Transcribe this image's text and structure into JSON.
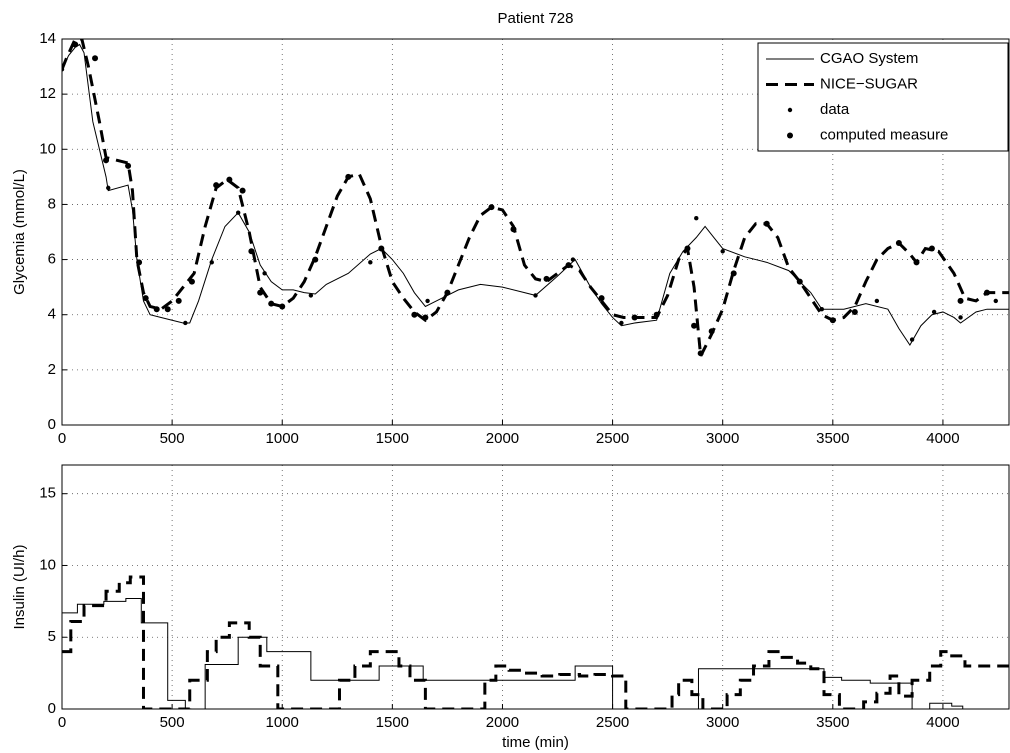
{
  "chart_data": [
    {
      "type": "line",
      "title": "Patient 728",
      "y_label": "Glycemia (mmol/L)",
      "xlim": [
        0,
        4300
      ],
      "xticks": [
        0,
        500,
        1000,
        1500,
        2000,
        2500,
        3000,
        3500,
        4000
      ],
      "ylim": [
        0,
        14
      ],
      "yticks": [
        0,
        2,
        4,
        6,
        8,
        10,
        12,
        14
      ],
      "grid": true,
      "legend": "northeast",
      "series": [
        {
          "name": "CGAO System",
          "color": "#000000",
          "style": "solid",
          "x": [
            0,
            30,
            60,
            80,
            100,
            140,
            200,
            210,
            300,
            320,
            340,
            370,
            400,
            450,
            500,
            550,
            580,
            620,
            680,
            740,
            800,
            850,
            900,
            950,
            1000,
            1050,
            1100,
            1150,
            1200,
            1300,
            1400,
            1450,
            1500,
            1550,
            1600,
            1650,
            1700,
            1800,
            1900,
            2000,
            2100,
            2150,
            2250,
            2330,
            2400,
            2450,
            2500,
            2540,
            2600,
            2700,
            2760,
            2820,
            2880,
            2920,
            2960,
            3000,
            3100,
            3200,
            3300,
            3400,
            3450,
            3550,
            3650,
            3750,
            3800,
            3850,
            3900,
            3950,
            4000,
            4050,
            4080,
            4150,
            4200,
            4300
          ],
          "values": [
            12.9,
            13.4,
            13.7,
            13.8,
            13.5,
            11,
            9,
            8.5,
            8.7,
            7.8,
            6,
            4.5,
            4,
            3.9,
            3.8,
            3.7,
            3.7,
            4.5,
            6,
            7.2,
            7.7,
            7,
            5.8,
            5.2,
            4.9,
            4.9,
            4.8,
            4.75,
            5.1,
            5.5,
            6.2,
            6.4,
            6,
            5.5,
            4.8,
            4.3,
            4.5,
            4.9,
            5.1,
            5,
            4.8,
            4.7,
            5.4,
            6,
            5,
            4.4,
            3.9,
            3.6,
            3.7,
            3.8,
            5.5,
            6.3,
            6.8,
            7.2,
            6.8,
            6.4,
            6.1,
            5.9,
            5.6,
            4.8,
            4.2,
            4.2,
            4.4,
            4.2,
            3.5,
            2.9,
            3.6,
            4,
            4.1,
            3.9,
            3.7,
            4.1,
            4.2,
            4.2
          ]
        },
        {
          "name": "NICE−SUGAR",
          "color": "#000000",
          "style": "dashed",
          "x": [
            0,
            20,
            60,
            90,
            120,
            170,
            200,
            250,
            300,
            320,
            340,
            370,
            400,
            450,
            500,
            550,
            600,
            650,
            700,
            750,
            800,
            850,
            900,
            950,
            1000,
            1050,
            1100,
            1150,
            1200,
            1250,
            1300,
            1350,
            1400,
            1450,
            1500,
            1550,
            1600,
            1650,
            1700,
            1750,
            1800,
            1850,
            1900,
            1950,
            2000,
            2050,
            2100,
            2150,
            2200,
            2250,
            2300,
            2350,
            2400,
            2450,
            2500,
            2550,
            2600,
            2700,
            2750,
            2800,
            2840,
            2870,
            2900,
            2950,
            3000,
            3050,
            3100,
            3150,
            3200,
            3250,
            3300,
            3350,
            3400,
            3450,
            3500,
            3550,
            3600,
            3650,
            3700,
            3750,
            3800,
            3850,
            3880,
            3920,
            3980,
            4050,
            4100,
            4150,
            4200,
            4300
          ],
          "values": [
            12.9,
            13.3,
            14,
            14,
            13,
            11,
            9.7,
            9.6,
            9.5,
            8.5,
            6,
            4.8,
            4.3,
            4.2,
            4.5,
            5,
            5.5,
            7.2,
            8.6,
            8.9,
            8.6,
            7,
            5,
            4.4,
            4.3,
            4.6,
            5.2,
            6.1,
            7.2,
            8.3,
            9,
            9.1,
            8.2,
            6.5,
            5.2,
            4.6,
            4.1,
            3.8,
            4.1,
            4.8,
            5.8,
            6.8,
            7.6,
            7.9,
            7.8,
            7.2,
            5.8,
            5.3,
            5.2,
            5.5,
            5.8,
            5.6,
            5,
            4.5,
            4,
            3.9,
            3.9,
            3.9,
            4.7,
            6,
            6.4,
            5,
            2.5,
            3.3,
            4.2,
            5.6,
            6.8,
            7.3,
            7.3,
            6.8,
            5.7,
            5.2,
            4.6,
            4,
            3.8,
            3.9,
            4.3,
            5.2,
            6,
            6.4,
            6.6,
            6.2,
            5.9,
            6.4,
            6.3,
            5.5,
            4.6,
            4.5,
            4.8,
            4.8
          ]
        },
        {
          "name": "data",
          "color": "#000000",
          "style": "small-dots",
          "x": [
            0,
            210,
            560,
            680,
            800,
            920,
            1130,
            1400,
            1660,
            2150,
            2320,
            2540,
            2880,
            3000,
            3450,
            3700,
            3860,
            3960,
            4080,
            4240
          ],
          "values": [
            12.9,
            8.6,
            3.7,
            5.9,
            7.7,
            5.5,
            4.7,
            5.9,
            4.5,
            4.7,
            6,
            3.7,
            7.5,
            6.3,
            4.2,
            4.5,
            3.1,
            4.1,
            3.9,
            4.5
          ]
        },
        {
          "name": "computed measure",
          "color": "#000000",
          "style": "large-dots",
          "x": [
            60,
            150,
            200,
            300,
            350,
            380,
            430,
            480,
            530,
            590,
            700,
            760,
            820,
            860,
            900,
            950,
            1000,
            1150,
            1300,
            1450,
            1600,
            1650,
            1750,
            1950,
            2050,
            2200,
            2300,
            2450,
            2600,
            2700,
            2840,
            2870,
            2900,
            2950,
            3050,
            3200,
            3350,
            3500,
            3600,
            3800,
            3880,
            3950,
            4080,
            4200
          ],
          "values": [
            13.8,
            13.3,
            9.6,
            9.4,
            5.9,
            4.6,
            4.2,
            4.2,
            4.5,
            5.2,
            8.7,
            8.9,
            8.5,
            6.3,
            4.8,
            4.4,
            4.3,
            6,
            9,
            6.4,
            4,
            3.9,
            4.8,
            7.9,
            7.1,
            5.3,
            5.8,
            4.6,
            3.9,
            4,
            6.4,
            3.6,
            2.6,
            3.4,
            5.5,
            7.3,
            5.2,
            3.8,
            4.1,
            6.6,
            5.9,
            6.4,
            4.5,
            4.8
          ]
        }
      ]
    },
    {
      "type": "step",
      "x_label": "time (min)",
      "y_label": "Insulin (UI/h)",
      "xlim": [
        0,
        4300
      ],
      "xticks": [
        0,
        500,
        1000,
        1500,
        2000,
        2500,
        3000,
        3500,
        4000
      ],
      "ylim": [
        0,
        17
      ],
      "yticks": [
        0,
        5,
        10,
        15
      ],
      "grid": true,
      "series": [
        {
          "name": "CGAO System",
          "color": "#000000",
          "style": "solid",
          "x": [
            0,
            70,
            190,
            290,
            360,
            480,
            560,
            650,
            800,
            930,
            1130,
            1440,
            1640,
            1920,
            2330,
            2500,
            2890,
            3460,
            3540,
            3670,
            3860,
            3940,
            4040,
            4090
          ],
          "values": [
            6.7,
            7.3,
            7.5,
            7.7,
            6,
            0.6,
            0,
            3.1,
            5,
            4,
            2,
            3,
            2,
            2,
            3,
            0,
            2.8,
            2.2,
            2,
            1.8,
            0,
            0.4,
            0.2,
            0
          ]
        },
        {
          "name": "NICE−SUGAR",
          "color": "#000000",
          "style": "dashed",
          "x": [
            0,
            40,
            100,
            200,
            260,
            310,
            370,
            540,
            580,
            660,
            700,
            760,
            850,
            900,
            980,
            1260,
            1330,
            1400,
            1530,
            1580,
            1650,
            1920,
            1970,
            2030,
            2100,
            2180,
            2260,
            2350,
            2420,
            2500,
            2560,
            2770,
            2800,
            2860,
            2910,
            3020,
            3080,
            3140,
            3210,
            3270,
            3340,
            3400,
            3460,
            3530,
            3640,
            3700,
            3760,
            3800,
            3860,
            3940,
            3990,
            4040,
            4100,
            4300
          ],
          "values": [
            4,
            6.1,
            7.2,
            8.2,
            8.8,
            9.2,
            0,
            0,
            2,
            4,
            5,
            6,
            5,
            3,
            0,
            2,
            3,
            4,
            3,
            2,
            0,
            2,
            3,
            2.7,
            2.5,
            2.3,
            2.4,
            2.3,
            2.4,
            2.3,
            0,
            1,
            2,
            1,
            0,
            1,
            2,
            3,
            4,
            3.6,
            3.2,
            2.8,
            1,
            0,
            0.5,
            1.1,
            2.3,
            0.9,
            2,
            3,
            4,
            3.7,
            3,
            3
          ]
        }
      ]
    }
  ]
}
